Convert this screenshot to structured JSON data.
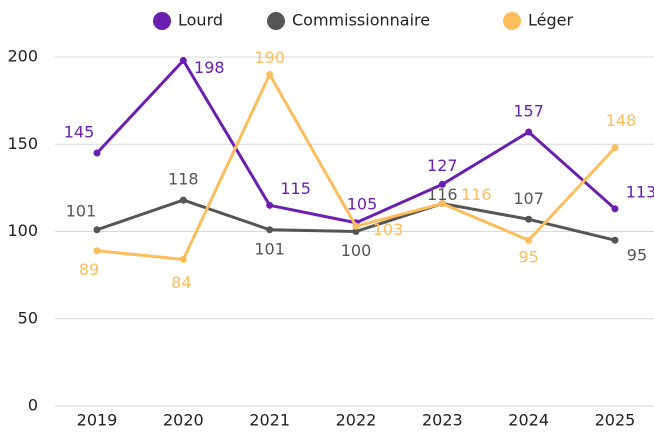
{
  "chart_data": {
    "type": "line",
    "categories": [
      "2019",
      "2020",
      "2021",
      "2022",
      "2023",
      "2024",
      "2025"
    ],
    "series": [
      {
        "name": "Lourd",
        "color": "#6b1fb1",
        "values": [
          145,
          198,
          115,
          105,
          127,
          157,
          113
        ]
      },
      {
        "name": "Commissionnaire",
        "color": "#555555",
        "values": [
          101,
          118,
          101,
          100,
          116,
          107,
          95
        ]
      },
      {
        "name": "Léger",
        "color": "#fdbd5b",
        "values": [
          89,
          84,
          190,
          103,
          116,
          95,
          148
        ]
      }
    ],
    "ylim": [
      0,
      200
    ],
    "yticks": [
      0,
      50,
      100,
      150,
      200
    ],
    "grid": true,
    "legend": "top"
  }
}
